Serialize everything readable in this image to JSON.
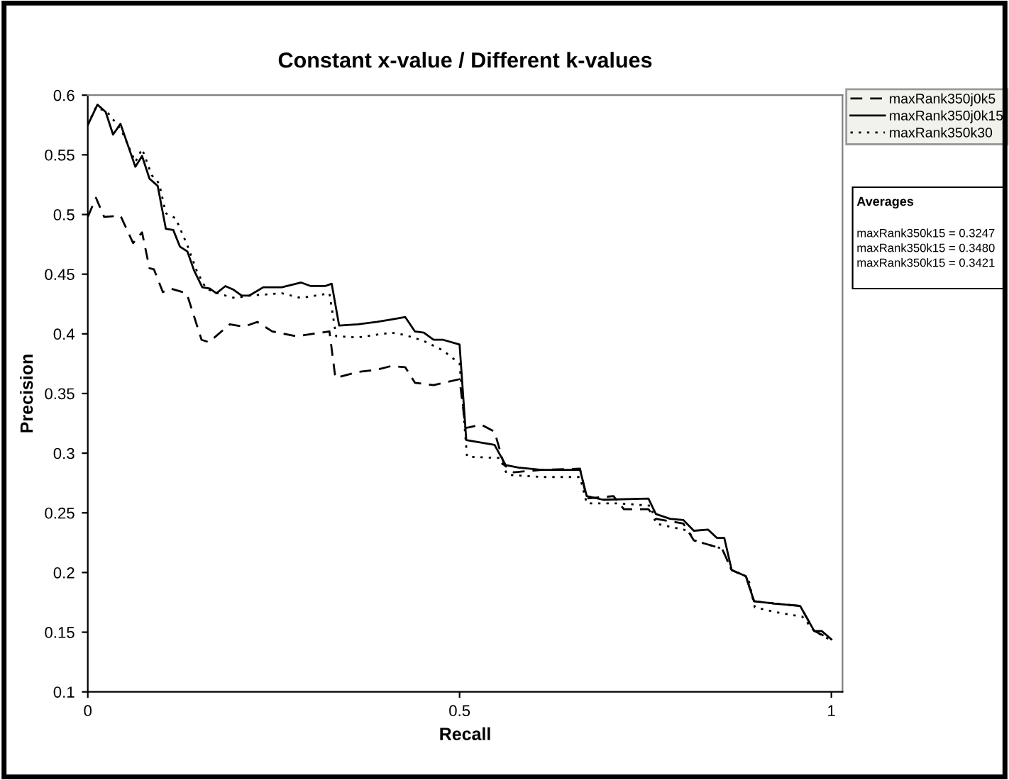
{
  "chart_data": {
    "type": "line",
    "title": "Constant x-value / Different k-values",
    "xlabel": "Recall",
    "ylabel": "Precision",
    "xlim": [
      0,
      1.015
    ],
    "xticks": [
      0,
      0.5,
      1
    ],
    "ylim": [
      0.1,
      0.6
    ],
    "yticks": [
      0.1,
      0.15,
      0.2,
      0.25,
      0.3,
      0.35,
      0.4,
      0.45,
      0.5,
      0.55,
      0.6
    ],
    "grid": false,
    "legend": "top right",
    "marker": "none",
    "series": [
      {
        "name": "maxRank350j0k5",
        "color": "#000000",
        "line_style": "dashed",
        "x": [
          0,
          0.011,
          0.022,
          0.044,
          0.061,
          0.073,
          0.083,
          0.089,
          0.101,
          0.111,
          0.133,
          0.153,
          0.163,
          0.191,
          0.21,
          0.228,
          0.248,
          0.28,
          0.325,
          0.333,
          0.363,
          0.389,
          0.408,
          0.427,
          0.44,
          0.465,
          0.5,
          0.508,
          0.529,
          0.547,
          0.56,
          0.573,
          0.61,
          0.662,
          0.671,
          0.707,
          0.721,
          0.754,
          0.764,
          0.801,
          0.815,
          0.853,
          0.866,
          0.885,
          0.896,
          0.923,
          0.958,
          0.977,
          1.0
        ],
        "values": [
          0.498,
          0.514,
          0.498,
          0.499,
          0.476,
          0.485,
          0.455,
          0.454,
          0.435,
          0.438,
          0.434,
          0.395,
          0.393,
          0.408,
          0.406,
          0.41,
          0.402,
          0.398,
          0.402,
          0.363,
          0.368,
          0.37,
          0.373,
          0.372,
          0.359,
          0.357,
          0.362,
          0.321,
          0.324,
          0.318,
          0.29,
          0.284,
          0.286,
          0.287,
          0.262,
          0.264,
          0.253,
          0.253,
          0.245,
          0.241,
          0.227,
          0.22,
          0.202,
          0.197,
          0.176,
          0.174,
          0.172,
          0.151,
          0.144
        ]
      },
      {
        "name": "maxRank350j0k15",
        "color": "#000000",
        "line_style": "solid",
        "x": [
          0,
          0.013,
          0.024,
          0.034,
          0.044,
          0.064,
          0.073,
          0.083,
          0.094,
          0.105,
          0.115,
          0.124,
          0.134,
          0.143,
          0.154,
          0.164,
          0.173,
          0.185,
          0.196,
          0.207,
          0.217,
          0.236,
          0.261,
          0.287,
          0.3,
          0.319,
          0.328,
          0.338,
          0.363,
          0.389,
          0.408,
          0.427,
          0.44,
          0.452,
          0.465,
          0.478,
          0.5,
          0.509,
          0.547,
          0.562,
          0.579,
          0.61,
          0.642,
          0.662,
          0.671,
          0.693,
          0.754,
          0.764,
          0.783,
          0.801,
          0.815,
          0.834,
          0.846,
          0.856,
          0.866,
          0.885,
          0.896,
          0.923,
          0.958,
          0.977,
          0.987,
          1.0
        ],
        "values": [
          0.575,
          0.592,
          0.586,
          0.567,
          0.576,
          0.54,
          0.549,
          0.53,
          0.524,
          0.488,
          0.487,
          0.473,
          0.469,
          0.453,
          0.439,
          0.438,
          0.434,
          0.44,
          0.437,
          0.432,
          0.432,
          0.439,
          0.439,
          0.443,
          0.44,
          0.44,
          0.442,
          0.407,
          0.408,
          0.41,
          0.412,
          0.414,
          0.402,
          0.401,
          0.395,
          0.395,
          0.391,
          0.311,
          0.307,
          0.29,
          0.288,
          0.286,
          0.286,
          0.286,
          0.264,
          0.261,
          0.262,
          0.249,
          0.245,
          0.244,
          0.235,
          0.236,
          0.229,
          0.229,
          0.202,
          0.197,
          0.176,
          0.174,
          0.172,
          0.151,
          0.151,
          0.144
        ]
      },
      {
        "name": "maxRank350k30",
        "color": "#000000",
        "line_style": "dotted",
        "x": [
          0,
          0.011,
          0.026,
          0.045,
          0.064,
          0.073,
          0.086,
          0.096,
          0.105,
          0.118,
          0.134,
          0.147,
          0.159,
          0.179,
          0.198,
          0.217,
          0.261,
          0.287,
          0.325,
          0.334,
          0.363,
          0.408,
          0.427,
          0.452,
          0.478,
          0.5,
          0.51,
          0.554,
          0.564,
          0.61,
          0.662,
          0.671,
          0.712,
          0.757,
          0.764,
          0.808,
          0.815,
          0.853,
          0.866,
          0.888,
          0.897,
          0.923,
          0.961,
          0.977,
          1.0
        ],
        "values": [
          0.575,
          0.59,
          0.586,
          0.571,
          0.544,
          0.555,
          0.533,
          0.526,
          0.501,
          0.497,
          0.474,
          0.452,
          0.438,
          0.433,
          0.43,
          0.432,
          0.434,
          0.43,
          0.434,
          0.398,
          0.397,
          0.401,
          0.399,
          0.394,
          0.386,
          0.375,
          0.297,
          0.296,
          0.282,
          0.28,
          0.28,
          0.258,
          0.258,
          0.256,
          0.241,
          0.235,
          0.227,
          0.22,
          0.202,
          0.196,
          0.171,
          0.167,
          0.163,
          0.151,
          0.143
        ]
      }
    ],
    "annotations": [
      "Averages",
      "maxRank350k15 = 0.3247",
      "maxRank350k15 = 0.3480",
      "maxRank350k15 = 0.3421"
    ]
  }
}
